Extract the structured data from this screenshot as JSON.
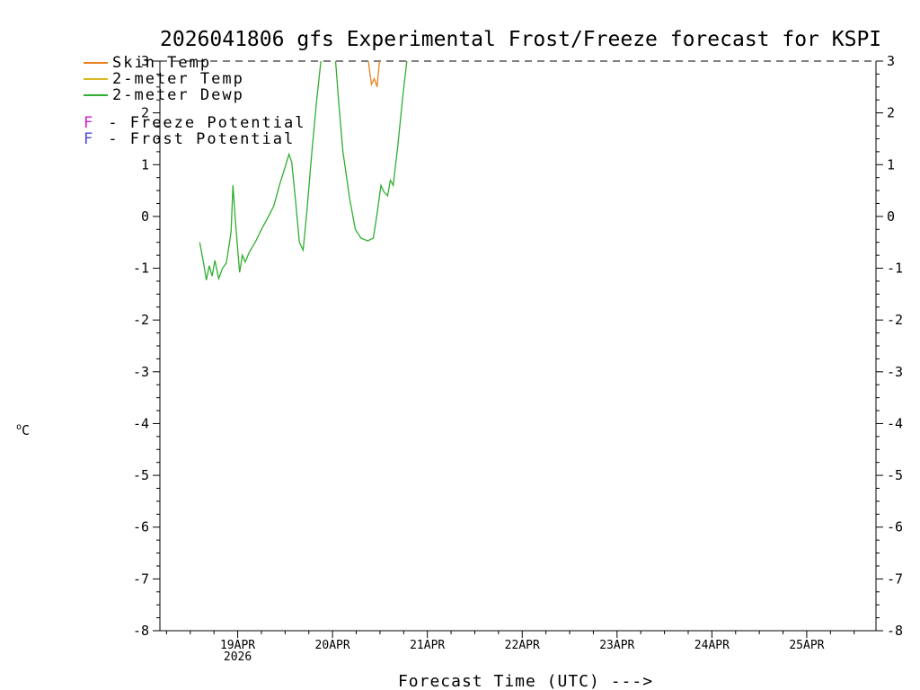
{
  "title": "2026041806 gfs Experimental Frost/Freeze forecast for KSPI",
  "legend": {
    "series": [
      {
        "label": "Skin Temp",
        "color": "#e8821e"
      },
      {
        "label": "2-meter Temp",
        "color": "#d9b821"
      },
      {
        "label": "2-meter Dewp",
        "color": "#2fae2f"
      }
    ],
    "flags": [
      {
        "flag": "F",
        "color": "#c820c8",
        "label": "- Freeze Potential"
      },
      {
        "flag": "F",
        "color": "#4848e0",
        "label": "- Frost Potential"
      }
    ]
  },
  "ylabel": {
    "sup": "o",
    "base": "C"
  },
  "xlabel": "Forecast Time (UTC) --->",
  "chart_data": {
    "type": "line",
    "title": "2026041806 gfs Experimental Frost/Freeze forecast for KSPI",
    "x_unit": "days relative to 19APR2026 0000 UTC",
    "x_axis": {
      "range": [
        -0.82,
        6.73
      ],
      "major_tick_days": [
        0,
        1,
        2,
        3,
        4,
        5,
        6
      ],
      "labels": [
        "19APR",
        "20APR",
        "21APR",
        "22APR",
        "23APR",
        "24APR",
        "25APR"
      ],
      "year": "2026",
      "minor_tick_interval": 0.25
    },
    "y_axis": {
      "range": [
        -8,
        3
      ],
      "ticks": [
        3,
        2,
        1,
        0,
        -1,
        -2,
        -3,
        -4,
        -5,
        -6,
        -7,
        -8
      ],
      "unit": "degC",
      "minor_tick_interval": 0.25
    },
    "series": [
      {
        "name": "Skin Temp",
        "color": "#e8821e",
        "points": [
          [
            1.37,
            3.1
          ],
          [
            1.41,
            2.55
          ],
          [
            1.44,
            2.66
          ],
          [
            1.47,
            2.5
          ],
          [
            1.5,
            3.1
          ]
        ]
      },
      {
        "name": "2-meter Temp",
        "color": "#d9b821",
        "points": []
      },
      {
        "name": "2-meter Dewp",
        "color": "#2fae2f",
        "points": [
          [
            -0.4,
            -0.5
          ],
          [
            -0.36,
            -0.9
          ],
          [
            -0.33,
            -1.23
          ],
          [
            -0.3,
            -0.95
          ],
          [
            -0.27,
            -1.15
          ],
          [
            -0.24,
            -0.85
          ],
          [
            -0.2,
            -1.2
          ],
          [
            -0.16,
            -1.0
          ],
          [
            -0.12,
            -0.9
          ],
          [
            -0.07,
            -0.3
          ],
          [
            -0.05,
            0.6
          ],
          [
            -0.02,
            -0.2
          ],
          [
            0.02,
            -1.08
          ],
          [
            0.05,
            -0.75
          ],
          [
            0.08,
            -0.88
          ],
          [
            0.12,
            -0.7
          ],
          [
            0.19,
            -0.48
          ],
          [
            0.25,
            -0.25
          ],
          [
            0.31,
            -0.05
          ],
          [
            0.38,
            0.2
          ],
          [
            0.44,
            0.6
          ],
          [
            0.5,
            0.95
          ],
          [
            0.54,
            1.2
          ],
          [
            0.57,
            1.05
          ],
          [
            0.61,
            0.3
          ],
          [
            0.65,
            -0.5
          ],
          [
            0.69,
            -0.65
          ],
          [
            0.73,
            0.1
          ],
          [
            0.78,
            1.2
          ],
          [
            0.83,
            2.2
          ],
          [
            0.88,
            3.05
          ],
          [
            0.95,
            3.6
          ],
          [
            1.0,
            3.4
          ],
          [
            1.03,
            3.05
          ],
          [
            1.07,
            2.1
          ],
          [
            1.11,
            1.25
          ],
          [
            1.18,
            0.35
          ],
          [
            1.24,
            -0.25
          ],
          [
            1.3,
            -0.42
          ],
          [
            1.37,
            -0.47
          ],
          [
            1.43,
            -0.42
          ],
          [
            1.47,
            0.05
          ],
          [
            1.51,
            0.6
          ],
          [
            1.54,
            0.48
          ],
          [
            1.58,
            0.4
          ],
          [
            1.61,
            0.7
          ],
          [
            1.64,
            0.6
          ],
          [
            1.69,
            1.4
          ],
          [
            1.74,
            2.3
          ],
          [
            1.79,
            3.1
          ]
        ]
      }
    ],
    "freeze_potential_marks": [],
    "frost_potential_marks": []
  }
}
